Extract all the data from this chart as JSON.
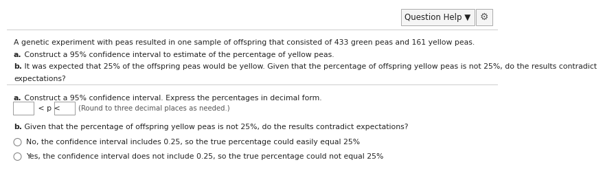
{
  "bg_color": "#ffffff",
  "header_bg": "#f5f5f5",
  "divider_color": "#cccccc",
  "text_color": "#222222",
  "hint_color": "#555555",
  "header_text": "Question Help ▼",
  "gear": "⚙",
  "intro_line1": "A genetic experiment with peas resulted in one sample of offspring that consisted of 433 green peas and 161 yellow peas.",
  "intro_line2a_bold": "a.",
  "intro_line2a": " Construct a 95% confidence interval to estimate of the percentage of yellow peas.",
  "intro_line3b_bold": "b.",
  "intro_line3b": " It was expected that 25% of the offspring peas would be yellow. Given that the percentage of offspring yellow peas is not 25%, do the results contradict",
  "intro_line3c": "expectations?",
  "sec_a_bold": "a.",
  "sec_a_text": " Construct a 95% confidence interval. Express the percentages in decimal form.",
  "ci_label": " < p < ",
  "ci_hint": "(Round to three decimal places as needed.)",
  "sec_b_bold": "b.",
  "sec_b_text": " Given that the percentage of offspring yellow peas is not 25%, do the results contradict expectations?",
  "option1": "No, the confidence interval includes 0.25, so the true percentage could easily equal 25%",
  "option2": "Yes, the confidence interval does not include 0.25, so the true percentage could not equal 25%",
  "font_size": 7.8,
  "font_size_header": 8.5
}
